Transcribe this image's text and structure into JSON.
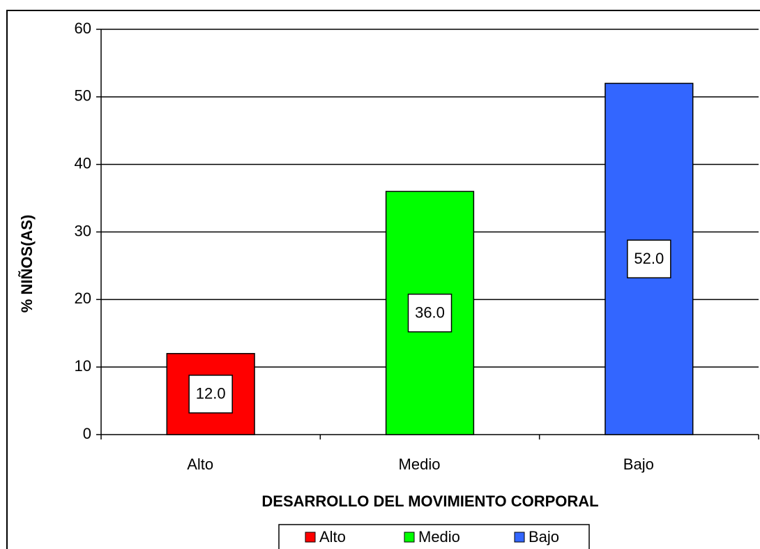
{
  "chart_data": {
    "type": "bar",
    "x_label": "DESARROLLO DEL MOVIMIENTO CORPORAL",
    "y_label": "% NIÑOS(AS)",
    "categories": [
      "Alto",
      "Medio",
      "Bajo"
    ],
    "values": [
      12,
      36,
      52
    ],
    "value_labels": [
      "12.0",
      "36.0",
      "52.0"
    ],
    "colors": [
      "#ff0000",
      "#00ff00",
      "#3366ff"
    ],
    "ylim": [
      0,
      60
    ],
    "yticks": [
      0,
      10,
      20,
      30,
      40,
      50,
      60
    ],
    "grid": true,
    "legend": "bottom"
  }
}
